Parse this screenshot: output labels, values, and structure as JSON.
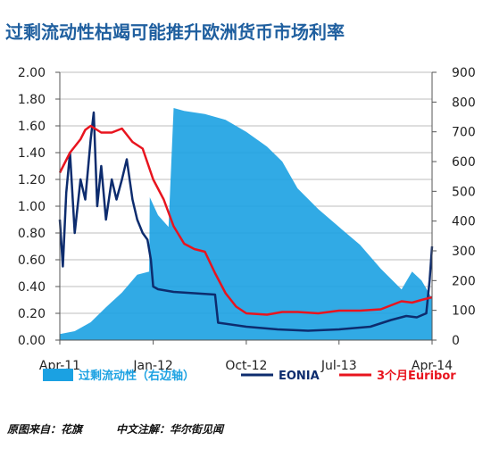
{
  "chart_data": {
    "type": "line",
    "title": "过剩流动性枯竭可能推升欧洲货币市场利率",
    "x_ticks": [
      "Apr-11",
      "Jan-12",
      "Oct-12",
      "Jul-13",
      "Apr-14"
    ],
    "y_left": {
      "range": [
        0,
        2.0
      ],
      "ticks": [
        "0.00",
        "0.20",
        "0.40",
        "0.60",
        "0.80",
        "1.00",
        "1.20",
        "1.40",
        "1.60",
        "1.80",
        "2.00"
      ]
    },
    "y_right": {
      "range": [
        0,
        900
      ],
      "ticks": [
        "0",
        "100",
        "200",
        "300",
        "400",
        "500",
        "600",
        "700",
        "800",
        "900"
      ]
    },
    "grid": true,
    "legend_position": "bottom",
    "series": [
      {
        "name": "过剩流动性（右边轴）",
        "type": "area",
        "axis": "right",
        "color": "#1ba1e2",
        "points": [
          [
            "2011-04-01",
            20
          ],
          [
            "2011-05-15",
            30
          ],
          [
            "2011-07-01",
            60
          ],
          [
            "2011-08-15",
            110
          ],
          [
            "2011-10-01",
            160
          ],
          [
            "2011-11-15",
            220
          ],
          [
            "2011-12-20",
            230
          ],
          [
            "2011-12-22",
            480
          ],
          [
            "2012-01-15",
            420
          ],
          [
            "2012-02-15",
            380
          ],
          [
            "2012-03-01",
            780
          ],
          [
            "2012-04-01",
            770
          ],
          [
            "2012-06-01",
            760
          ],
          [
            "2012-08-01",
            740
          ],
          [
            "2012-10-01",
            700
          ],
          [
            "2012-12-01",
            650
          ],
          [
            "2013-01-15",
            600
          ],
          [
            "2013-03-01",
            510
          ],
          [
            "2013-05-01",
            440
          ],
          [
            "2013-07-01",
            380
          ],
          [
            "2013-09-01",
            320
          ],
          [
            "2013-11-01",
            240
          ],
          [
            "2014-01-01",
            170
          ],
          [
            "2014-02-01",
            230
          ],
          [
            "2014-03-01",
            200
          ],
          [
            "2014-04-01",
            140
          ]
        ]
      },
      {
        "name": "EONIA",
        "type": "line",
        "axis": "left",
        "color": "#0d2c6e",
        "points": [
          [
            "2011-04-01",
            0.9
          ],
          [
            "2011-04-10",
            0.55
          ],
          [
            "2011-04-20",
            1.1
          ],
          [
            "2011-05-01",
            1.4
          ],
          [
            "2011-05-15",
            0.8
          ],
          [
            "2011-06-01",
            1.2
          ],
          [
            "2011-06-15",
            1.05
          ],
          [
            "2011-07-01",
            1.5
          ],
          [
            "2011-07-10",
            1.7
          ],
          [
            "2011-07-20",
            1.0
          ],
          [
            "2011-08-01",
            1.3
          ],
          [
            "2011-08-15",
            0.9
          ],
          [
            "2011-09-01",
            1.2
          ],
          [
            "2011-09-15",
            1.05
          ],
          [
            "2011-10-01",
            1.2
          ],
          [
            "2011-10-15",
            1.35
          ],
          [
            "2011-11-01",
            1.05
          ],
          [
            "2011-11-15",
            0.9
          ],
          [
            "2011-12-01",
            0.8
          ],
          [
            "2011-12-15",
            0.75
          ],
          [
            "2011-12-25",
            0.6
          ],
          [
            "2012-01-01",
            0.4
          ],
          [
            "2012-01-15",
            0.38
          ],
          [
            "2012-03-01",
            0.36
          ],
          [
            "2012-05-01",
            0.35
          ],
          [
            "2012-07-01",
            0.34
          ],
          [
            "2012-07-10",
            0.13
          ],
          [
            "2012-10-01",
            0.1
          ],
          [
            "2013-01-01",
            0.08
          ],
          [
            "2013-04-01",
            0.07
          ],
          [
            "2013-07-01",
            0.08
          ],
          [
            "2013-10-01",
            0.1
          ],
          [
            "2013-12-01",
            0.15
          ],
          [
            "2014-01-15",
            0.18
          ],
          [
            "2014-02-15",
            0.17
          ],
          [
            "2014-03-15",
            0.2
          ],
          [
            "2014-03-25",
            0.45
          ],
          [
            "2014-04-01",
            0.7
          ]
        ]
      },
      {
        "name": "3个月Euribor",
        "type": "line",
        "axis": "left",
        "color": "#e8141e",
        "points": [
          [
            "2011-04-01",
            1.25
          ],
          [
            "2011-05-01",
            1.4
          ],
          [
            "2011-06-01",
            1.5
          ],
          [
            "2011-06-15",
            1.57
          ],
          [
            "2011-07-01",
            1.6
          ],
          [
            "2011-08-01",
            1.55
          ],
          [
            "2011-09-01",
            1.55
          ],
          [
            "2011-10-01",
            1.58
          ],
          [
            "2011-11-01",
            1.48
          ],
          [
            "2011-12-01",
            1.43
          ],
          [
            "2012-01-01",
            1.2
          ],
          [
            "2012-02-01",
            1.05
          ],
          [
            "2012-03-01",
            0.85
          ],
          [
            "2012-04-01",
            0.72
          ],
          [
            "2012-05-01",
            0.68
          ],
          [
            "2012-06-01",
            0.66
          ],
          [
            "2012-07-01",
            0.5
          ],
          [
            "2012-08-01",
            0.35
          ],
          [
            "2012-09-01",
            0.25
          ],
          [
            "2012-10-01",
            0.2
          ],
          [
            "2012-12-01",
            0.19
          ],
          [
            "2013-01-15",
            0.21
          ],
          [
            "2013-03-01",
            0.21
          ],
          [
            "2013-05-01",
            0.2
          ],
          [
            "2013-07-01",
            0.22
          ],
          [
            "2013-09-01",
            0.22
          ],
          [
            "2013-11-01",
            0.23
          ],
          [
            "2014-01-01",
            0.29
          ],
          [
            "2014-02-01",
            0.28
          ],
          [
            "2014-03-01",
            0.3
          ],
          [
            "2014-04-01",
            0.32
          ]
        ]
      }
    ]
  },
  "footer": {
    "source": "原图来自：花旗",
    "note": "中文注解：华尔街见闻"
  }
}
